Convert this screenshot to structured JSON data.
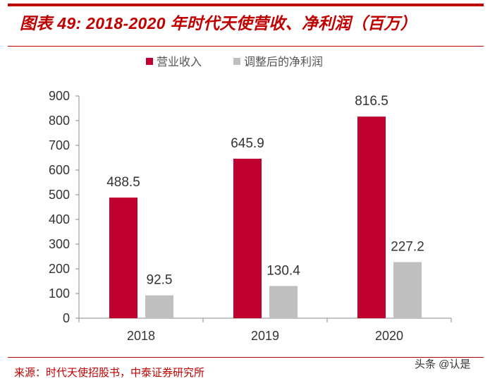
{
  "title": "图表 49: 2018-2020 年时代天使营收、净利润（百万）",
  "source": "来源：时代天使招股书，中泰证券研究所",
  "watermark": "头条 @认是",
  "colors": {
    "revenue": "#c00030",
    "profit": "#bfbfbf",
    "accent": "#c00000"
  },
  "chart_data": {
    "type": "bar",
    "title": "2018-2020 年时代天使营收、净利润（百万）",
    "categories": [
      "2018",
      "2019",
      "2020"
    ],
    "series": [
      {
        "name": "营业收入",
        "values": [
          488.5,
          645.9,
          816.5
        ],
        "color": "#c00030"
      },
      {
        "name": "调整后的净利润",
        "values": [
          92.5,
          130.4,
          227.2
        ],
        "color": "#bfbfbf"
      }
    ],
    "yticks": [
      "0",
      "100",
      "200",
      "300",
      "400",
      "500",
      "600",
      "700",
      "800",
      "900"
    ],
    "ylim": [
      0,
      900
    ],
    "legend": "top-center",
    "grid": false,
    "xlabel": "",
    "ylabel": ""
  }
}
